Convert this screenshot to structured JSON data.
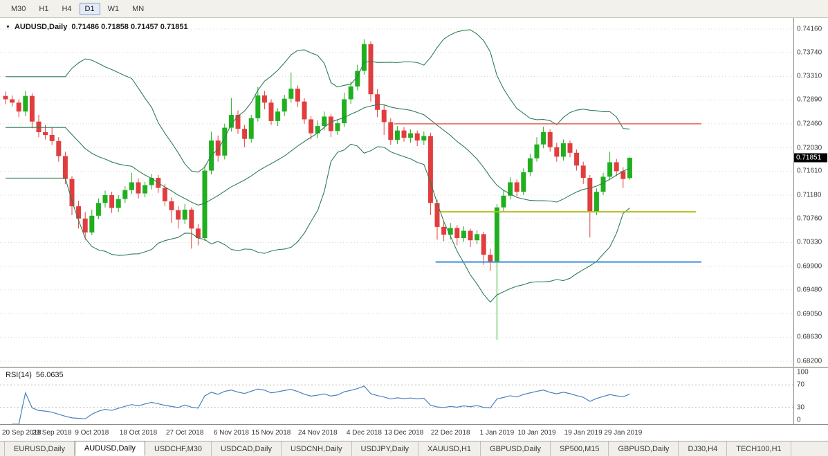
{
  "icons": {
    "symbol_dropdown": "▼"
  },
  "toolbar": {
    "timeframes": [
      {
        "label": "M30",
        "selected": false
      },
      {
        "label": "H1",
        "selected": false
      },
      {
        "label": "H4",
        "selected": false
      },
      {
        "label": "D1",
        "selected": true
      },
      {
        "label": "W1",
        "selected": false
      },
      {
        "label": "MN",
        "selected": false
      }
    ]
  },
  "chart_data": {
    "type": "candlestick",
    "symbol": "AUDUSD",
    "timeframe": "Daily",
    "title": "AUDUSD,Daily",
    "ohlc_text": "0.71486 0.71858 0.71457 0.71851",
    "ohlc_display": {
      "open": "0.71486",
      "high": "0.71858",
      "low": "0.71457",
      "close": "0.71851"
    },
    "price_axis": {
      "top": 0.7416,
      "bottom": 0.682,
      "last_price": "0.71851",
      "ticks": [
        "0.74160",
        "0.73740",
        "0.73310",
        "0.72890",
        "0.72460",
        "0.72030",
        "0.71610",
        "0.71180",
        "0.70760",
        "0.70330",
        "0.69900",
        "0.69480",
        "0.69050",
        "0.68630",
        "0.68200"
      ]
    },
    "time_ticks": [
      {
        "label": "20 Sep 2018",
        "bar": 0
      },
      {
        "label": "29 Sep 2018",
        "bar": 7
      },
      {
        "label": "9 Oct 2018",
        "bar": 13
      },
      {
        "label": "18 Oct 2018",
        "bar": 20
      },
      {
        "label": "27 Oct 2018",
        "bar": 27
      },
      {
        "label": "6 Nov 2018",
        "bar": 34
      },
      {
        "label": "15 Nov 2018",
        "bar": 40
      },
      {
        "label": "24 Nov 2018",
        "bar": 47
      },
      {
        "label": "4 Dec 2018",
        "bar": 54
      },
      {
        "label": "13 Dec 2018",
        "bar": 60
      },
      {
        "label": "22 Dec 2018",
        "bar": 67
      },
      {
        "label": "1 Jan 2019",
        "bar": 74
      },
      {
        "label": "10 Jan 2019",
        "bar": 80
      },
      {
        "label": "19 Jan 2019",
        "bar": 87
      },
      {
        "label": "29 Jan 2019",
        "bar": 93
      }
    ],
    "candles": [
      [
        0.7296,
        0.7304,
        0.7281,
        0.729
      ],
      [
        0.729,
        0.7297,
        0.7277,
        0.7284
      ],
      [
        0.7284,
        0.729,
        0.7258,
        0.7268
      ],
      [
        0.7268,
        0.7305,
        0.726,
        0.7296
      ],
      [
        0.7296,
        0.7301,
        0.7238,
        0.725
      ],
      [
        0.725,
        0.7262,
        0.7222,
        0.7231
      ],
      [
        0.7231,
        0.7244,
        0.7218,
        0.7226
      ],
      [
        0.7226,
        0.724,
        0.7208,
        0.7215
      ],
      [
        0.7215,
        0.7222,
        0.7178,
        0.7188
      ],
      [
        0.7188,
        0.7196,
        0.7138,
        0.7147
      ],
      [
        0.7147,
        0.7152,
        0.7082,
        0.7098
      ],
      [
        0.7098,
        0.7108,
        0.7058,
        0.7076
      ],
      [
        0.7076,
        0.7088,
        0.7038,
        0.7051
      ],
      [
        0.7051,
        0.7092,
        0.7046,
        0.7081
      ],
      [
        0.7081,
        0.7112,
        0.7075,
        0.7104
      ],
      [
        0.7104,
        0.7126,
        0.7096,
        0.7118
      ],
      [
        0.7118,
        0.7124,
        0.7086,
        0.7095
      ],
      [
        0.7095,
        0.7118,
        0.7088,
        0.7111
      ],
      [
        0.7111,
        0.7134,
        0.7104,
        0.7127
      ],
      [
        0.7127,
        0.7158,
        0.712,
        0.7141
      ],
      [
        0.7141,
        0.7148,
        0.7112,
        0.7121
      ],
      [
        0.7121,
        0.7142,
        0.7114,
        0.7136
      ],
      [
        0.7136,
        0.7156,
        0.7128,
        0.7149
      ],
      [
        0.7149,
        0.7154,
        0.7122,
        0.7131
      ],
      [
        0.7131,
        0.7138,
        0.7098,
        0.7107
      ],
      [
        0.7107,
        0.7114,
        0.7068,
        0.7091
      ],
      [
        0.7091,
        0.7098,
        0.7058,
        0.7074
      ],
      [
        0.7074,
        0.7102,
        0.7066,
        0.7092
      ],
      [
        0.7092,
        0.7096,
        0.7022,
        0.7058
      ],
      [
        0.7058,
        0.7066,
        0.7028,
        0.7041
      ],
      [
        0.7041,
        0.7172,
        0.7036,
        0.7162
      ],
      [
        0.7162,
        0.7232,
        0.7155,
        0.7216
      ],
      [
        0.7216,
        0.7225,
        0.7178,
        0.7189
      ],
      [
        0.7189,
        0.7246,
        0.7182,
        0.7239
      ],
      [
        0.7239,
        0.7292,
        0.7232,
        0.7262
      ],
      [
        0.7262,
        0.727,
        0.7228,
        0.7237
      ],
      [
        0.7237,
        0.7244,
        0.7204,
        0.7219
      ],
      [
        0.7219,
        0.7262,
        0.7212,
        0.7256
      ],
      [
        0.7256,
        0.7312,
        0.725,
        0.7297
      ],
      [
        0.7297,
        0.7305,
        0.7272,
        0.7284
      ],
      [
        0.7284,
        0.729,
        0.7244,
        0.7251
      ],
      [
        0.7251,
        0.7274,
        0.7242,
        0.7268
      ],
      [
        0.7268,
        0.7298,
        0.726,
        0.7291
      ],
      [
        0.7291,
        0.7338,
        0.7284,
        0.7309
      ],
      [
        0.7309,
        0.7315,
        0.7276,
        0.7286
      ],
      [
        0.7286,
        0.7292,
        0.7246,
        0.7254
      ],
      [
        0.7254,
        0.726,
        0.7218,
        0.7229
      ],
      [
        0.7229,
        0.7252,
        0.722,
        0.7242
      ],
      [
        0.7242,
        0.7268,
        0.7234,
        0.7259
      ],
      [
        0.7259,
        0.7264,
        0.7222,
        0.7233
      ],
      [
        0.7233,
        0.7254,
        0.7226,
        0.7247
      ],
      [
        0.7247,
        0.7302,
        0.724,
        0.729
      ],
      [
        0.729,
        0.7322,
        0.7282,
        0.7313
      ],
      [
        0.7313,
        0.7352,
        0.7306,
        0.7341
      ],
      [
        0.7341,
        0.7398,
        0.7334,
        0.7389
      ],
      [
        0.7389,
        0.7394,
        0.7286,
        0.7299
      ],
      [
        0.7299,
        0.7308,
        0.7258,
        0.7271
      ],
      [
        0.7271,
        0.728,
        0.7226,
        0.7249
      ],
      [
        0.7249,
        0.7256,
        0.7208,
        0.7217
      ],
      [
        0.7217,
        0.7242,
        0.721,
        0.7234
      ],
      [
        0.7234,
        0.724,
        0.7214,
        0.7221
      ],
      [
        0.7221,
        0.7236,
        0.7212,
        0.7229
      ],
      [
        0.7229,
        0.7234,
        0.7206,
        0.7216
      ],
      [
        0.7216,
        0.7232,
        0.7208,
        0.7224
      ],
      [
        0.7224,
        0.723,
        0.7082,
        0.7104
      ],
      [
        0.7104,
        0.711,
        0.7038,
        0.7061
      ],
      [
        0.7061,
        0.7072,
        0.7035,
        0.7047
      ],
      [
        0.7047,
        0.7068,
        0.7038,
        0.7059
      ],
      [
        0.7059,
        0.7064,
        0.7028,
        0.7041
      ],
      [
        0.7041,
        0.7062,
        0.7034,
        0.7054
      ],
      [
        0.7054,
        0.7058,
        0.7025,
        0.7037
      ],
      [
        0.7037,
        0.7055,
        0.703,
        0.7048
      ],
      [
        0.7048,
        0.7052,
        0.6993,
        0.7011
      ],
      [
        0.7011,
        0.7022,
        0.6982,
        0.6998
      ],
      [
        0.6998,
        0.7102,
        0.6858,
        0.7096
      ],
      [
        0.7096,
        0.7128,
        0.7088,
        0.7117
      ],
      [
        0.7117,
        0.715,
        0.711,
        0.7141
      ],
      [
        0.7141,
        0.7146,
        0.7116,
        0.7124
      ],
      [
        0.7124,
        0.7166,
        0.7118,
        0.7159
      ],
      [
        0.7159,
        0.7192,
        0.7152,
        0.7184
      ],
      [
        0.7184,
        0.7222,
        0.7178,
        0.7209
      ],
      [
        0.7209,
        0.7241,
        0.7202,
        0.7231
      ],
      [
        0.7231,
        0.7236,
        0.7196,
        0.7204
      ],
      [
        0.7204,
        0.7212,
        0.7178,
        0.7187
      ],
      [
        0.7187,
        0.7218,
        0.718,
        0.7211
      ],
      [
        0.7211,
        0.7216,
        0.7186,
        0.7194
      ],
      [
        0.7194,
        0.72,
        0.7162,
        0.7171
      ],
      [
        0.7171,
        0.7178,
        0.7138,
        0.7149
      ],
      [
        0.7149,
        0.7154,
        0.7042,
        0.7089
      ],
      [
        0.7089,
        0.713,
        0.7082,
        0.7124
      ],
      [
        0.7124,
        0.7158,
        0.7118,
        0.7151
      ],
      [
        0.7151,
        0.7196,
        0.7146,
        0.7177
      ],
      [
        0.7177,
        0.7183,
        0.7152,
        0.7161
      ],
      [
        0.7161,
        0.7168,
        0.7131,
        0.7147
      ],
      [
        0.71486,
        0.71858,
        0.71457,
        0.71851
      ]
    ],
    "bollinger": {
      "period": 20,
      "deviation": 2,
      "color": "#2e7d55"
    },
    "hlines": [
      {
        "name": "resistance-line-red",
        "price": 0.7246,
        "color": "#de5248",
        "width": 1.4,
        "x1f": 0.497,
        "x2f": 0.884
      },
      {
        "name": "support-line-olive",
        "price": 0.7088,
        "color": "#b6bc1c",
        "width": 2.0,
        "x1f": 0.555,
        "x2f": 0.877
      },
      {
        "name": "support-line-blue",
        "price": 0.6998,
        "color": "#3b8ede",
        "width": 2.0,
        "x1f": 0.549,
        "x2f": 0.884
      }
    ],
    "rsi": {
      "label": "RSI(14)",
      "value": "56.0635",
      "period": 14,
      "color": "#4a7ebf",
      "ticks": [
        "100",
        "70",
        "30",
        "0"
      ],
      "levels": [
        70,
        30
      ]
    },
    "colors": {
      "up": "#1faf1f",
      "down": "#e03e3e",
      "grid": "#d8d8d8",
      "badge_bg": "#000000",
      "badge_text": "#ffffff"
    }
  },
  "tabs": [
    {
      "label": "EURUSD,Daily",
      "selected": false
    },
    {
      "label": "AUDUSD,Daily",
      "selected": true
    },
    {
      "label": "USDCHF,M30",
      "selected": false
    },
    {
      "label": "USDCAD,Daily",
      "selected": false
    },
    {
      "label": "USDCNH,Daily",
      "selected": false
    },
    {
      "label": "USDJPY,Daily",
      "selected": false
    },
    {
      "label": "XAUUSD,H1",
      "selected": false
    },
    {
      "label": "GBPUSD,Daily",
      "selected": false
    },
    {
      "label": "SP500,M15",
      "selected": false
    },
    {
      "label": "GBPUSD,Daily",
      "selected": false
    },
    {
      "label": "DJ30,H4",
      "selected": false
    },
    {
      "label": "TECH100,H1",
      "selected": false
    }
  ]
}
